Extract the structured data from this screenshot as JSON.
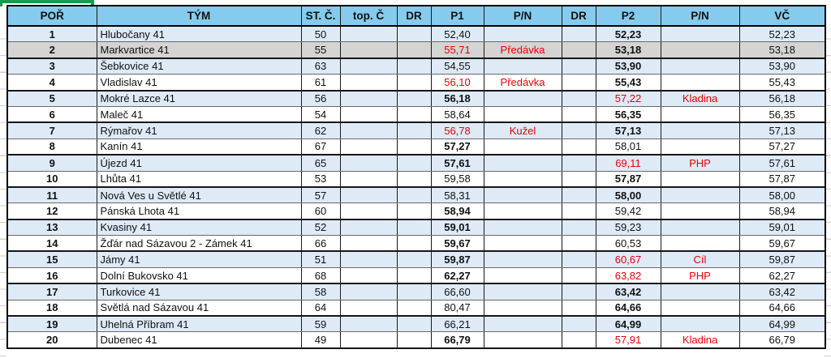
{
  "colors": {
    "header_bg": "#85CBED",
    "row_blue": "#DEEAF6",
    "row_gray": "#D4D4D4",
    "red_text": "#EE0000",
    "selection_green": "#179B4E"
  },
  "table": {
    "columns": [
      "POŘ",
      "TÝM",
      "ST. Č.",
      "top. Č",
      "DR",
      "P1",
      "P/N",
      "DR",
      "P2",
      "P/N",
      "VČ"
    ],
    "rows": [
      {
        "rank": "1",
        "team": "Hlubočany 41",
        "start": "50",
        "top": "",
        "dr1": "",
        "p1": "52,40",
        "p1_bold": false,
        "p1_red": false,
        "pn1": "",
        "dr2": "",
        "p2": "52,23",
        "p2_bold": true,
        "p2_red": false,
        "pn2": "",
        "vc": "52,23",
        "bg": "blue"
      },
      {
        "rank": "2",
        "team": "Markvartice 41",
        "start": "55",
        "top": "",
        "dr1": "",
        "p1": "55,71",
        "p1_bold": false,
        "p1_red": true,
        "pn1": "Předávka",
        "dr2": "",
        "p2": "53,18",
        "p2_bold": true,
        "p2_red": false,
        "pn2": "",
        "vc": "53,18",
        "bg": "gray"
      },
      {
        "rank": "3",
        "team": "Šebkovice 41",
        "start": "63",
        "top": "",
        "dr1": "",
        "p1": "54,55",
        "p1_bold": false,
        "p1_red": false,
        "pn1": "",
        "dr2": "",
        "p2": "53,90",
        "p2_bold": true,
        "p2_red": false,
        "pn2": "",
        "vc": "53,90",
        "bg": "blue"
      },
      {
        "rank": "4",
        "team": "Vladislav 41",
        "start": "61",
        "top": "",
        "dr1": "",
        "p1": "56,10",
        "p1_bold": false,
        "p1_red": true,
        "pn1": "Předávka",
        "dr2": "",
        "p2": "55,43",
        "p2_bold": true,
        "p2_red": false,
        "pn2": "",
        "vc": "55,43",
        "bg": "white"
      },
      {
        "rank": "5",
        "team": "Mokré Lazce 41",
        "start": "56",
        "top": "",
        "dr1": "",
        "p1": "56,18",
        "p1_bold": true,
        "p1_red": false,
        "pn1": "",
        "dr2": "",
        "p2": "57,22",
        "p2_bold": false,
        "p2_red": true,
        "pn2": "Kladina",
        "vc": "56,18",
        "bg": "blue"
      },
      {
        "rank": "6",
        "team": "Maleč 41",
        "start": "54",
        "top": "",
        "dr1": "",
        "p1": "58,64",
        "p1_bold": false,
        "p1_red": false,
        "pn1": "",
        "dr2": "",
        "p2": "56,35",
        "p2_bold": true,
        "p2_red": false,
        "pn2": "",
        "vc": "56,35",
        "bg": "white"
      },
      {
        "rank": "7",
        "team": "Rýmařov 41",
        "start": "62",
        "top": "",
        "dr1": "",
        "p1": "56,78",
        "p1_bold": false,
        "p1_red": true,
        "pn1": "Kužel",
        "dr2": "",
        "p2": "57,13",
        "p2_bold": true,
        "p2_red": false,
        "pn2": "",
        "vc": "57,13",
        "bg": "blue"
      },
      {
        "rank": "8",
        "team": "Kanín 41",
        "start": "67",
        "top": "",
        "dr1": "",
        "p1": "57,27",
        "p1_bold": true,
        "p1_red": false,
        "pn1": "",
        "dr2": "",
        "p2": "58,01",
        "p2_bold": false,
        "p2_red": false,
        "pn2": "",
        "vc": "57,27",
        "bg": "white"
      },
      {
        "rank": "9",
        "team": "Újezd 41",
        "start": "65",
        "top": "",
        "dr1": "",
        "p1": "57,61",
        "p1_bold": true,
        "p1_red": false,
        "pn1": "",
        "dr2": "",
        "p2": "69,11",
        "p2_bold": false,
        "p2_red": true,
        "pn2": "PHP",
        "vc": "57,61",
        "bg": "blue"
      },
      {
        "rank": "10",
        "team": "Lhůta 41",
        "start": "53",
        "top": "",
        "dr1": "",
        "p1": "59,58",
        "p1_bold": false,
        "p1_red": false,
        "pn1": "",
        "dr2": "",
        "p2": "57,87",
        "p2_bold": true,
        "p2_red": false,
        "pn2": "",
        "vc": "57,87",
        "bg": "white"
      },
      {
        "rank": "11",
        "team": "Nová Ves u Světlé 41",
        "start": "57",
        "top": "",
        "dr1": "",
        "p1": "58,31",
        "p1_bold": false,
        "p1_red": false,
        "pn1": "",
        "dr2": "",
        "p2": "58,00",
        "p2_bold": true,
        "p2_red": false,
        "pn2": "",
        "vc": "58,00",
        "bg": "blue"
      },
      {
        "rank": "12",
        "team": "Pánská Lhota 41",
        "start": "60",
        "top": "",
        "dr1": "",
        "p1": "58,94",
        "p1_bold": true,
        "p1_red": false,
        "pn1": "",
        "dr2": "",
        "p2": "59,42",
        "p2_bold": false,
        "p2_red": false,
        "pn2": "",
        "vc": "58,94",
        "bg": "white"
      },
      {
        "rank": "13",
        "team": "Kvasiny 41",
        "start": "52",
        "top": "",
        "dr1": "",
        "p1": "59,01",
        "p1_bold": true,
        "p1_red": false,
        "pn1": "",
        "dr2": "",
        "p2": "59,23",
        "p2_bold": false,
        "p2_red": false,
        "pn2": "",
        "vc": "59,01",
        "bg": "blue"
      },
      {
        "rank": "14",
        "team": "Žďár nad Sázavou 2 - Zámek 41",
        "start": "66",
        "top": "",
        "dr1": "",
        "p1": "59,67",
        "p1_bold": true,
        "p1_red": false,
        "pn1": "",
        "dr2": "",
        "p2": "60,53",
        "p2_bold": false,
        "p2_red": false,
        "pn2": "",
        "vc": "59,67",
        "bg": "white"
      },
      {
        "rank": "15",
        "team": "Jámy 41",
        "start": "51",
        "top": "",
        "dr1": "",
        "p1": "59,87",
        "p1_bold": true,
        "p1_red": false,
        "pn1": "",
        "dr2": "",
        "p2": "60,67",
        "p2_bold": false,
        "p2_red": true,
        "pn2": "Cíl",
        "vc": "59,87",
        "bg": "blue"
      },
      {
        "rank": "16",
        "team": "Dolní Bukovsko 41",
        "start": "68",
        "top": "",
        "dr1": "",
        "p1": "62,27",
        "p1_bold": true,
        "p1_red": false,
        "pn1": "",
        "dr2": "",
        "p2": "63,82",
        "p2_bold": false,
        "p2_red": true,
        "pn2": "PHP",
        "vc": "62,27",
        "bg": "white"
      },
      {
        "rank": "17",
        "team": "Turkovice 41",
        "start": "58",
        "top": "",
        "dr1": "",
        "p1": "66,60",
        "p1_bold": false,
        "p1_red": false,
        "pn1": "",
        "dr2": "",
        "p2": "63,42",
        "p2_bold": true,
        "p2_red": false,
        "pn2": "",
        "vc": "63,42",
        "bg": "blue"
      },
      {
        "rank": "18",
        "team": "Světlá nad Sázavou 41",
        "start": "64",
        "top": "",
        "dr1": "",
        "p1": "80,47",
        "p1_bold": false,
        "p1_red": false,
        "pn1": "",
        "dr2": "",
        "p2": "64,66",
        "p2_bold": true,
        "p2_red": false,
        "pn2": "",
        "vc": "64,66",
        "bg": "white"
      },
      {
        "rank": "19",
        "team": "Uhelná Příbram 41",
        "start": "59",
        "top": "",
        "dr1": "",
        "p1": "66,21",
        "p1_bold": false,
        "p1_red": false,
        "pn1": "",
        "dr2": "",
        "p2": "64,99",
        "p2_bold": true,
        "p2_red": false,
        "pn2": "",
        "vc": "64,99",
        "bg": "blue"
      },
      {
        "rank": "20",
        "team": "Dubenec 41",
        "start": "49",
        "top": "",
        "dr1": "",
        "p1": "66,79",
        "p1_bold": true,
        "p1_red": false,
        "pn1": "",
        "dr2": "",
        "p2": "57,91",
        "p2_bold": false,
        "p2_red": true,
        "pn2": "Kladina",
        "vc": "66,79",
        "bg": "white"
      }
    ]
  }
}
